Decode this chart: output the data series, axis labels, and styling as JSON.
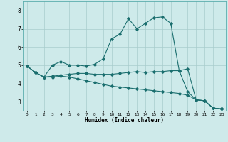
{
  "xlabel": "Humidex (Indice chaleur)",
  "bg_color": "#ceeaea",
  "grid_color": "#a8cccc",
  "line_color": "#1a6e6e",
  "xlim": [
    -0.5,
    23.5
  ],
  "ylim": [
    2.5,
    8.5
  ],
  "xticks": [
    0,
    1,
    2,
    3,
    4,
    5,
    6,
    7,
    8,
    9,
    10,
    11,
    12,
    13,
    14,
    15,
    16,
    17,
    18,
    19,
    20,
    21,
    22,
    23
  ],
  "yticks": [
    3,
    4,
    5,
    6,
    7,
    8
  ],
  "series": {
    "line1_x": [
      0,
      1,
      2,
      3,
      4,
      5,
      6,
      7,
      8,
      9,
      10,
      11,
      12,
      13,
      14,
      15,
      16,
      17,
      18,
      19,
      20,
      21,
      22,
      23
    ],
    "line1_y": [
      4.95,
      4.6,
      4.35,
      5.0,
      5.2,
      5.0,
      5.0,
      4.95,
      5.05,
      5.35,
      6.45,
      6.7,
      7.55,
      7.0,
      7.3,
      7.6,
      7.65,
      7.3,
      4.7,
      4.8,
      3.1,
      3.05,
      2.65,
      2.6
    ],
    "line2_x": [
      0,
      1,
      2,
      3,
      4,
      5,
      6,
      7,
      8,
      9,
      10,
      11,
      12,
      13,
      14,
      15,
      16,
      17,
      18,
      19,
      20,
      21,
      22,
      23
    ],
    "line2_y": [
      4.95,
      4.6,
      4.35,
      4.4,
      4.45,
      4.5,
      4.55,
      4.55,
      4.5,
      4.5,
      4.5,
      4.55,
      4.6,
      4.65,
      4.6,
      4.65,
      4.65,
      4.7,
      4.7,
      3.55,
      3.1,
      3.05,
      2.65,
      2.6
    ],
    "line3_x": [
      0,
      1,
      2,
      3,
      4,
      5,
      6,
      7,
      8,
      9,
      10,
      11,
      12,
      13,
      14,
      15,
      16,
      17,
      18,
      19,
      20,
      21,
      22,
      23
    ],
    "line3_y": [
      4.95,
      4.6,
      4.35,
      4.35,
      4.4,
      4.35,
      4.25,
      4.15,
      4.05,
      3.95,
      3.85,
      3.8,
      3.75,
      3.7,
      3.65,
      3.6,
      3.55,
      3.5,
      3.45,
      3.35,
      3.1,
      3.05,
      2.65,
      2.6
    ]
  }
}
